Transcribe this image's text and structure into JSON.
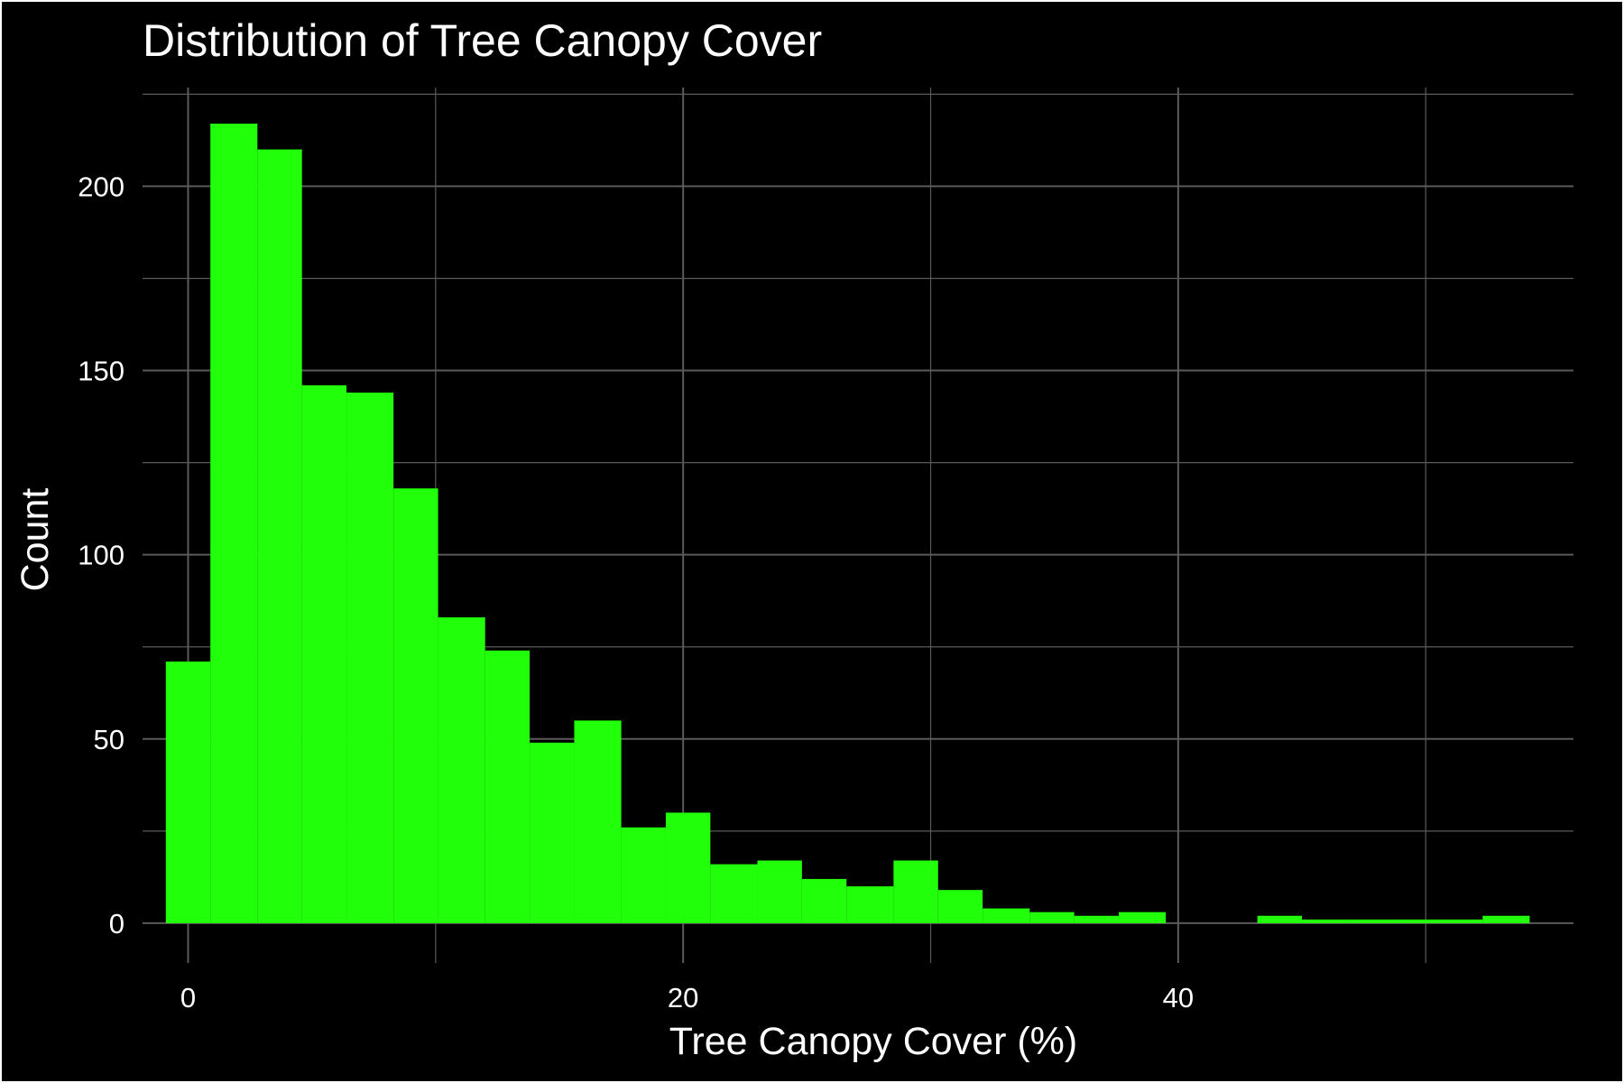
{
  "chart_data": {
    "type": "bar",
    "title": "Distribution of Tree Canopy Cover",
    "xlabel": "Tree Canopy Cover (%)",
    "ylabel": "Count",
    "xlim": [
      -1.84,
      55.97
    ],
    "ylim": [
      -10.8,
      226.8
    ],
    "x_ticks": [
      0,
      20,
      40
    ],
    "y_ticks": [
      0,
      50,
      100,
      150,
      200
    ],
    "x_ticks_minor": [
      10,
      30,
      50
    ],
    "y_ticks_minor": [
      25,
      75,
      125,
      175,
      225
    ],
    "grid": true,
    "legend": "none",
    "bar_color": "#22ff0a",
    "background_color": "#000000",
    "grid_color": "#5a5a5a",
    "text_color": "#ffffff",
    "bins": [
      {
        "x0": -0.9,
        "x1": 0.9,
        "count": 71
      },
      {
        "x0": 0.9,
        "x1": 2.8,
        "count": 217
      },
      {
        "x0": 2.8,
        "x1": 4.6,
        "count": 210
      },
      {
        "x0": 4.6,
        "x1": 6.4,
        "count": 146
      },
      {
        "x0": 6.4,
        "x1": 8.3,
        "count": 144
      },
      {
        "x0": 8.3,
        "x1": 10.1,
        "count": 118
      },
      {
        "x0": 10.1,
        "x1": 12.0,
        "count": 83
      },
      {
        "x0": 12.0,
        "x1": 13.8,
        "count": 74
      },
      {
        "x0": 13.8,
        "x1": 15.6,
        "count": 49
      },
      {
        "x0": 15.6,
        "x1": 17.5,
        "count": 55
      },
      {
        "x0": 17.5,
        "x1": 19.3,
        "count": 26
      },
      {
        "x0": 19.3,
        "x1": 21.1,
        "count": 30
      },
      {
        "x0": 21.1,
        "x1": 23.0,
        "count": 16
      },
      {
        "x0": 23.0,
        "x1": 24.8,
        "count": 17
      },
      {
        "x0": 24.8,
        "x1": 26.6,
        "count": 12
      },
      {
        "x0": 26.6,
        "x1": 28.5,
        "count": 10
      },
      {
        "x0": 28.5,
        "x1": 30.3,
        "count": 17
      },
      {
        "x0": 30.3,
        "x1": 32.1,
        "count": 9
      },
      {
        "x0": 32.1,
        "x1": 34.0,
        "count": 4
      },
      {
        "x0": 34.0,
        "x1": 35.8,
        "count": 3
      },
      {
        "x0": 35.8,
        "x1": 37.6,
        "count": 2
      },
      {
        "x0": 37.6,
        "x1": 39.5,
        "count": 3
      },
      {
        "x0": 39.5,
        "x1": 41.3,
        "count": 0
      },
      {
        "x0": 41.3,
        "x1": 43.2,
        "count": 0
      },
      {
        "x0": 43.2,
        "x1": 45.0,
        "count": 2
      },
      {
        "x0": 45.0,
        "x1": 46.8,
        "count": 1
      },
      {
        "x0": 46.8,
        "x1": 48.7,
        "count": 1
      },
      {
        "x0": 48.7,
        "x1": 50.5,
        "count": 1
      },
      {
        "x0": 50.5,
        "x1": 52.3,
        "count": 1
      },
      {
        "x0": 52.3,
        "x1": 54.2,
        "count": 2
      }
    ]
  }
}
